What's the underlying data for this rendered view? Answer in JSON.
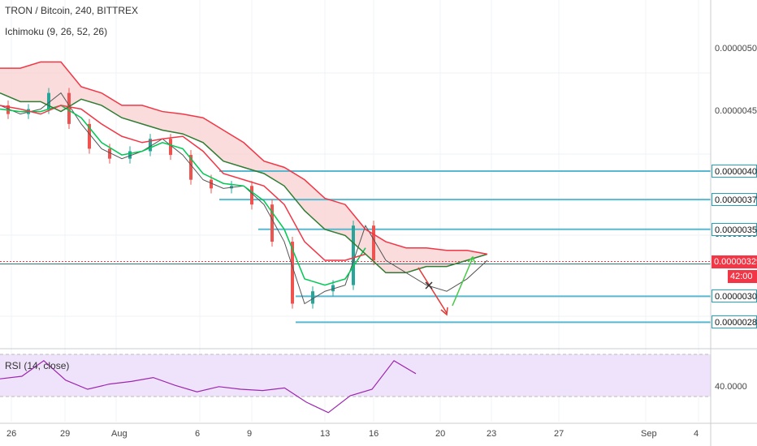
{
  "header": {
    "symbol_line": "TRON / Bitcoin, 240, BITTREX",
    "indicator": "Ichimoku (9, 26, 52, 26)"
  },
  "rsi": {
    "label": "RSI (14, close)",
    "level_label": "40.0000"
  },
  "price_axis": {
    "ticks": [
      "0.00000500",
      "0.00000450",
      "0.00000350"
    ],
    "tick_values": [
      5e-06,
      4.5e-06,
      3.5e-06
    ]
  },
  "horizontal_levels": [
    {
      "label": "0.00000402",
      "value": 4.02e-06
    },
    {
      "label": "0.00000379",
      "value": 3.79e-06
    },
    {
      "label": "0.00000355",
      "value": 3.55e-06
    },
    {
      "label": "0.00000301",
      "value": 3.01e-06
    },
    {
      "label": "0.00000280",
      "value": 2.8e-06
    }
  ],
  "current_price": {
    "label": "0.00000329",
    "value": 3.29e-06,
    "countdown": "42:00"
  },
  "time_axis": [
    "26",
    "29",
    "Aug",
    "6",
    "9",
    "13",
    "16",
    "20",
    "23",
    "27",
    "Sep",
    "4"
  ],
  "colors": {
    "cloud_red": "#f9d3d3",
    "span_red": "#f23645",
    "span_green": "#2e7d32",
    "tenkan": "#00c853",
    "level_line": "#58b8d0",
    "rsi_line": "#9c27b0",
    "rsi_band": "#efe3fb",
    "arrow_red": "#e53935",
    "arrow_green": "#43c943",
    "arrow_dark": "#333333"
  },
  "chart_data": {
    "type": "line",
    "title": "TRON / Bitcoin, 240, BITTREX",
    "ylim": [
      2.6e-06,
      5.4e-06
    ],
    "x": [
      0,
      4,
      8,
      12,
      16,
      20,
      24,
      28,
      32,
      36,
      40,
      44,
      48,
      52,
      56,
      60,
      64,
      68,
      72,
      76,
      80,
      84,
      88,
      92,
      96
    ],
    "series": [
      {
        "name": "price",
        "values": [
          4.55,
          4.48,
          4.52,
          4.65,
          4.4,
          4.2,
          4.12,
          4.18,
          4.28,
          4.15,
          3.95,
          3.88,
          3.9,
          3.75,
          3.45,
          2.95,
          3.05,
          3.1,
          3.58,
          3.3,
          3.2,
          3.1,
          3.05,
          3.15,
          3.3
        ]
      },
      {
        "name": "tenkan",
        "values": [
          4.52,
          4.5,
          4.5,
          4.55,
          4.45,
          4.25,
          4.15,
          4.18,
          4.25,
          4.2,
          4.0,
          3.92,
          3.9,
          3.78,
          3.55,
          3.15,
          3.1,
          3.15,
          3.4,
          null,
          null,
          null,
          null,
          null,
          null
        ]
      },
      {
        "name": "kijun",
        "values": [
          4.55,
          4.52,
          4.48,
          4.55,
          4.52,
          4.4,
          4.3,
          4.25,
          4.28,
          4.3,
          4.18,
          4.0,
          3.95,
          3.9,
          3.75,
          3.45,
          3.3,
          3.3,
          3.35,
          null,
          null,
          null,
          null,
          null,
          null
        ]
      },
      {
        "name": "senkou_a",
        "values": [
          4.65,
          4.58,
          4.58,
          4.5,
          4.6,
          4.55,
          4.45,
          4.4,
          4.35,
          4.32,
          4.25,
          4.1,
          4.05,
          4.0,
          3.9,
          3.7,
          3.55,
          3.5,
          3.35,
          3.2,
          3.2,
          3.25,
          3.25,
          3.3,
          3.35
        ]
      },
      {
        "name": "senkou_b",
        "values": [
          4.85,
          4.85,
          4.9,
          4.9,
          4.7,
          4.65,
          4.55,
          4.55,
          4.5,
          4.48,
          4.45,
          4.35,
          4.25,
          4.1,
          4.05,
          3.95,
          3.8,
          3.75,
          3.55,
          3.45,
          3.4,
          3.4,
          3.38,
          3.38,
          3.35
        ]
      }
    ],
    "rsi_values": [
      48,
      50,
      62,
      47,
      40,
      44,
      46,
      49,
      43,
      38,
      42,
      40,
      39,
      41,
      30,
      22,
      35,
      40,
      62,
      52
    ],
    "xlabel": "",
    "ylabel": "",
    "grid": true
  }
}
